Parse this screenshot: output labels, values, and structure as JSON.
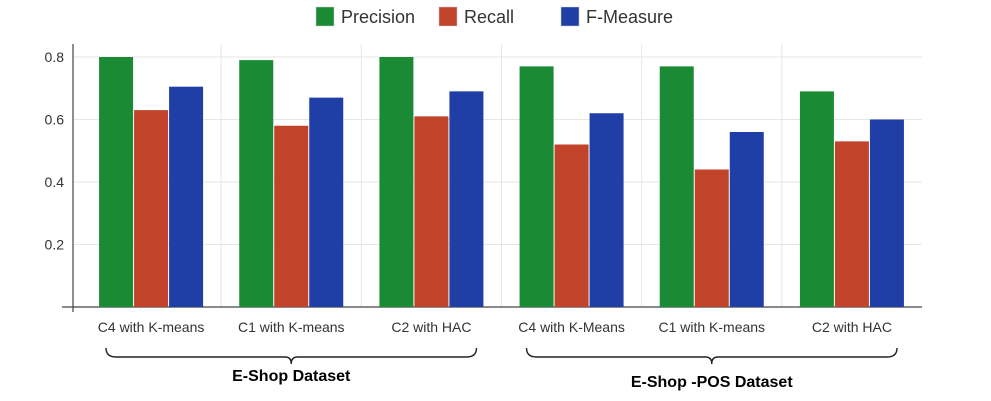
{
  "chart_data": {
    "type": "bar",
    "categories": [
      "C4 with K-means",
      "C1 with K-means",
      "C2 with HAC",
      "C4 with K-Means",
      "C1 with K-means",
      "C2 with HAC"
    ],
    "series": [
      {
        "name": "Precision",
        "color": "#1a8a35",
        "values": [
          0.8,
          0.79,
          0.8,
          0.77,
          0.77,
          0.69
        ]
      },
      {
        "name": "Recall",
        "color": "#c0432a",
        "values": [
          0.63,
          0.58,
          0.61,
          0.52,
          0.44,
          0.53
        ]
      },
      {
        "name": "F-Measure",
        "color": "#1f3fa6",
        "values": [
          0.705,
          0.67,
          0.69,
          0.62,
          0.56,
          0.6
        ]
      }
    ],
    "ylim": [
      0,
      0.8
    ],
    "yticks": [
      0.2,
      0.4,
      0.6,
      0.8
    ],
    "yticklabels": [
      "0.2",
      "0.4",
      "0.6",
      "0.8"
    ],
    "grid": true,
    "legend": "top-center",
    "groups": [
      {
        "label": "E-Shop Dataset",
        "categories": [
          0,
          1,
          2
        ]
      },
      {
        "label": "E-Shop -POS Dataset",
        "categories": [
          3,
          4,
          5
        ]
      }
    ]
  }
}
